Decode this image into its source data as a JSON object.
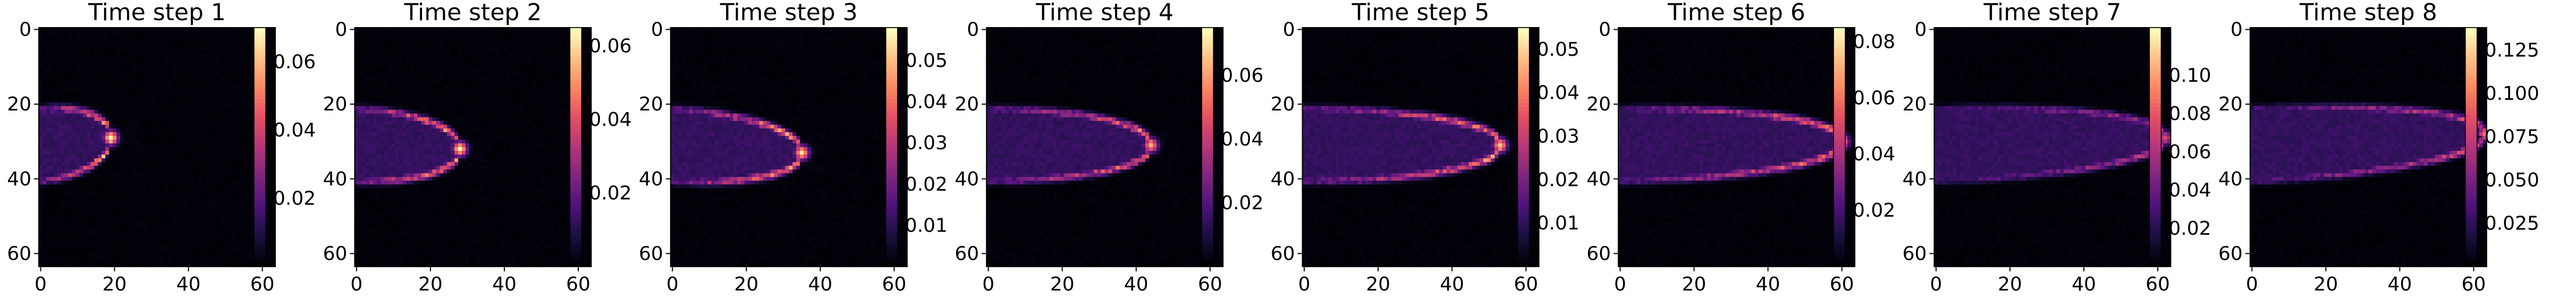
{
  "chart_data": [
    {
      "type": "heatmap",
      "title": "Time step 1",
      "x_ticks": [
        "0",
        "20",
        "40",
        "60"
      ],
      "y_ticks": [
        "0",
        "20",
        "40",
        "60"
      ],
      "colorbar_ticks": [
        "0.02",
        "0.04",
        "0.06"
      ],
      "colorbar_values": [
        0.02,
        0.04,
        0.06
      ],
      "colorbar_range": [
        0.0,
        0.07
      ],
      "front_x": 19,
      "front_y": 29,
      "intensity": 1.0
    },
    {
      "type": "heatmap",
      "title": "Time step 2",
      "x_ticks": [
        "0",
        "20",
        "40",
        "60"
      ],
      "y_ticks": [
        "0",
        "20",
        "40",
        "60"
      ],
      "colorbar_ticks": [
        "0.02",
        "0.04",
        "0.06"
      ],
      "colorbar_values": [
        0.02,
        0.04,
        0.06
      ],
      "colorbar_range": [
        0.0,
        0.065
      ],
      "front_x": 28,
      "front_y": 32,
      "intensity": 1.0
    },
    {
      "type": "heatmap",
      "title": "Time step 3",
      "x_ticks": [
        "0",
        "20",
        "40",
        "60"
      ],
      "y_ticks": [
        "0",
        "20",
        "40",
        "60"
      ],
      "colorbar_ticks": [
        "0.01",
        "0.02",
        "0.03",
        "0.04",
        "0.05"
      ],
      "colorbar_values": [
        0.01,
        0.02,
        0.03,
        0.04,
        0.05
      ],
      "colorbar_range": [
        0.0,
        0.058
      ],
      "front_x": 35,
      "front_y": 33,
      "intensity": 0.95
    },
    {
      "type": "heatmap",
      "title": "Time step 4",
      "x_ticks": [
        "0",
        "20",
        "40",
        "60"
      ],
      "y_ticks": [
        "0",
        "20",
        "40",
        "60"
      ],
      "colorbar_ticks": [
        "0.02",
        "0.04",
        "0.06"
      ],
      "colorbar_values": [
        0.02,
        0.04,
        0.06
      ],
      "colorbar_range": [
        0.0,
        0.075
      ],
      "front_x": 44,
      "front_y": 31,
      "intensity": 0.85
    },
    {
      "type": "heatmap",
      "title": "Time step 5",
      "x_ticks": [
        "0",
        "20",
        "40",
        "60"
      ],
      "y_ticks": [
        "0",
        "20",
        "40",
        "60"
      ],
      "colorbar_ticks": [
        "0.01",
        "0.02",
        "0.03",
        "0.04",
        "0.05"
      ],
      "colorbar_values": [
        0.01,
        0.02,
        0.03,
        0.04,
        0.05
      ],
      "colorbar_range": [
        0.0,
        0.055
      ],
      "front_x": 53,
      "front_y": 31,
      "intensity": 0.9
    },
    {
      "type": "heatmap",
      "title": "Time step 6",
      "x_ticks": [
        "0",
        "20",
        "40",
        "60"
      ],
      "y_ticks": [
        "0",
        "20",
        "40",
        "60"
      ],
      "colorbar_ticks": [
        "0.02",
        "0.04",
        "0.06",
        "0.08"
      ],
      "colorbar_values": [
        0.02,
        0.04,
        0.06,
        0.08
      ],
      "colorbar_range": [
        0.0,
        0.085
      ],
      "front_x": 60,
      "front_y": 30,
      "intensity": 0.85
    },
    {
      "type": "heatmap",
      "title": "Time step 7",
      "x_ticks": [
        "0",
        "20",
        "40",
        "60"
      ],
      "y_ticks": [
        "0",
        "20",
        "40",
        "60"
      ],
      "colorbar_ticks": [
        "0.02",
        "0.04",
        "0.06",
        "0.08",
        "0.10"
      ],
      "colorbar_values": [
        0.02,
        0.04,
        0.06,
        0.08,
        0.1
      ],
      "colorbar_range": [
        0.0,
        0.125
      ],
      "front_x": 62,
      "front_y": 29,
      "intensity": 0.6
    },
    {
      "type": "heatmap",
      "title": "Time step 8",
      "x_ticks": [
        "0",
        "20",
        "40",
        "60"
      ],
      "y_ticks": [
        "0",
        "20",
        "40",
        "60"
      ],
      "colorbar_ticks": [
        "0.025",
        "0.050",
        "0.075",
        "0.100",
        "0.125"
      ],
      "colorbar_values": [
        0.025,
        0.05,
        0.075,
        0.1,
        0.125
      ],
      "colorbar_range": [
        0.0,
        0.138
      ],
      "front_x": 63,
      "front_y": 28,
      "intensity": 0.7
    }
  ],
  "colormap": "magma",
  "grid": false
}
